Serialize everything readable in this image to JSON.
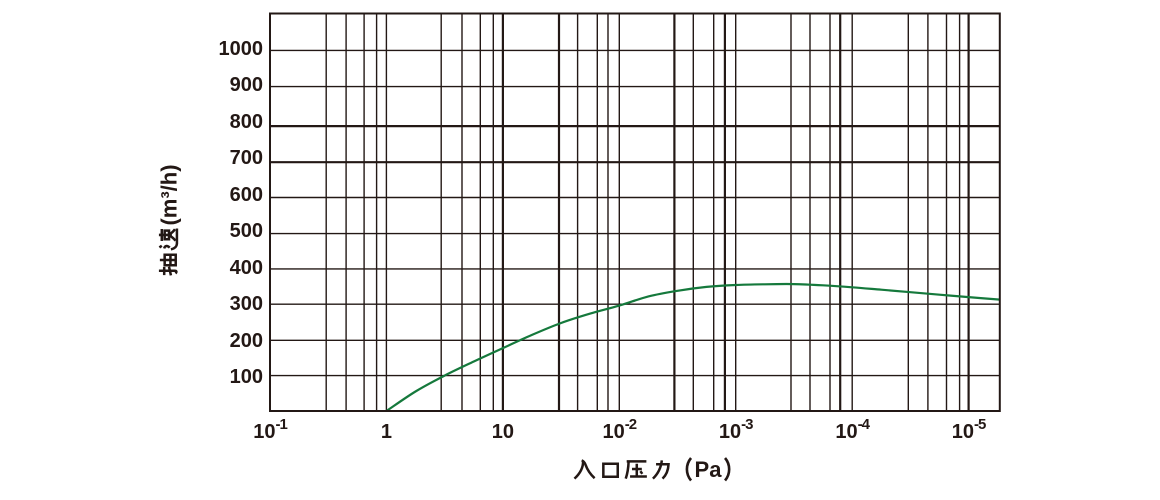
{
  "page": {
    "background": "#ffffff",
    "description": "Pumping speed vs inlet pressure performance curve chart"
  },
  "chart_data": {
    "type": "line",
    "title": "",
    "xlabel": "入口压力（Pa）",
    "ylabel": "抽速(m³/h)",
    "grid_color": "#231815",
    "text_color": "#231815",
    "x_axis": {
      "scale": "log-decades",
      "tick_labels": [
        {
          "base": "10",
          "exp": "-1"
        },
        {
          "base": "1",
          "exp": ""
        },
        {
          "base": "10",
          "exp": ""
        },
        {
          "base": "10",
          "exp": "-2"
        },
        {
          "base": "10",
          "exp": "-3"
        },
        {
          "base": "10",
          "exp": "-4"
        },
        {
          "base": "10",
          "exp": "-5"
        }
      ],
      "decades": 6,
      "right_overhang_decades": 0.268,
      "minor_line_offsets": [
        [
          0.483,
          0.654,
          0.808,
          0.916
        ],
        [
          0.47,
          0.649,
          0.806,
          0.918
        ],
        [
          0.482,
          0.642,
          0.811,
          0.903
        ],
        [
          0.473,
          0.636,
          0.811,
          0.907
        ],
        [
          0.475,
          0.638,
          0.81,
          0.897
        ],
        [
          0.482,
          0.651,
          0.81,
          0.923
        ]
      ],
      "thick_line_positions_decades": [
        2.0,
        2.482,
        3.473,
        3.907,
        4.897,
        6.0
      ]
    },
    "y_axis": {
      "scale": "linear",
      "min": 0,
      "max": 1100,
      "tick_step": 100,
      "tick_labels": [
        "100",
        "200",
        "300",
        "400",
        "500",
        "600",
        "700",
        "800",
        "900",
        "1000"
      ],
      "thick_line_values": [
        700,
        800
      ]
    },
    "series": [
      {
        "name": "pumping-speed-curve",
        "color": "#15793c",
        "stroke_width": 2.2,
        "points_decades_vs_value": [
          [
            1.0,
            0
          ],
          [
            1.25,
            55
          ],
          [
            1.5,
            100
          ],
          [
            1.75,
            140
          ],
          [
            2.0,
            178
          ],
          [
            2.25,
            215
          ],
          [
            2.5,
            248
          ],
          [
            2.75,
            274
          ],
          [
            3.0,
            296
          ],
          [
            3.25,
            322
          ],
          [
            3.5,
            338
          ],
          [
            3.75,
            349
          ],
          [
            4.0,
            354.5
          ],
          [
            4.25,
            356.5
          ],
          [
            4.5,
            357
          ],
          [
            4.75,
            353.5
          ],
          [
            5.0,
            348
          ],
          [
            5.25,
            341
          ],
          [
            5.5,
            334
          ],
          [
            5.75,
            327
          ],
          [
            6.0,
            320
          ],
          [
            6.27,
            313
          ]
        ]
      }
    ]
  }
}
